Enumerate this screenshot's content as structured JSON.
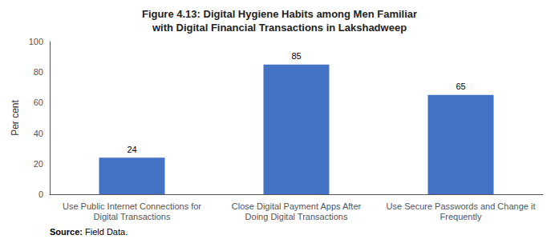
{
  "chart_data": {
    "type": "bar",
    "title": "Figure 4.13: Digital Hygiene Habits among Men Familiar\nwith Digital Financial Transactions in Lakshadweep",
    "categories": [
      "Use Public Internet Connections for\nDigital Transactions",
      "Close Digital Payment Apps After\nDoing Digital Transactions",
      "Use Secure Passwords and Change it\nFrequently"
    ],
    "values": [
      24,
      85,
      65
    ],
    "color": "#4472C4",
    "ylabel": "Per cent",
    "ylim": [
      0,
      100
    ],
    "yticks": [
      0,
      20,
      40,
      60,
      80,
      100
    ],
    "data_labels": true,
    "grid": false,
    "annotation": "Source: Field Data."
  }
}
